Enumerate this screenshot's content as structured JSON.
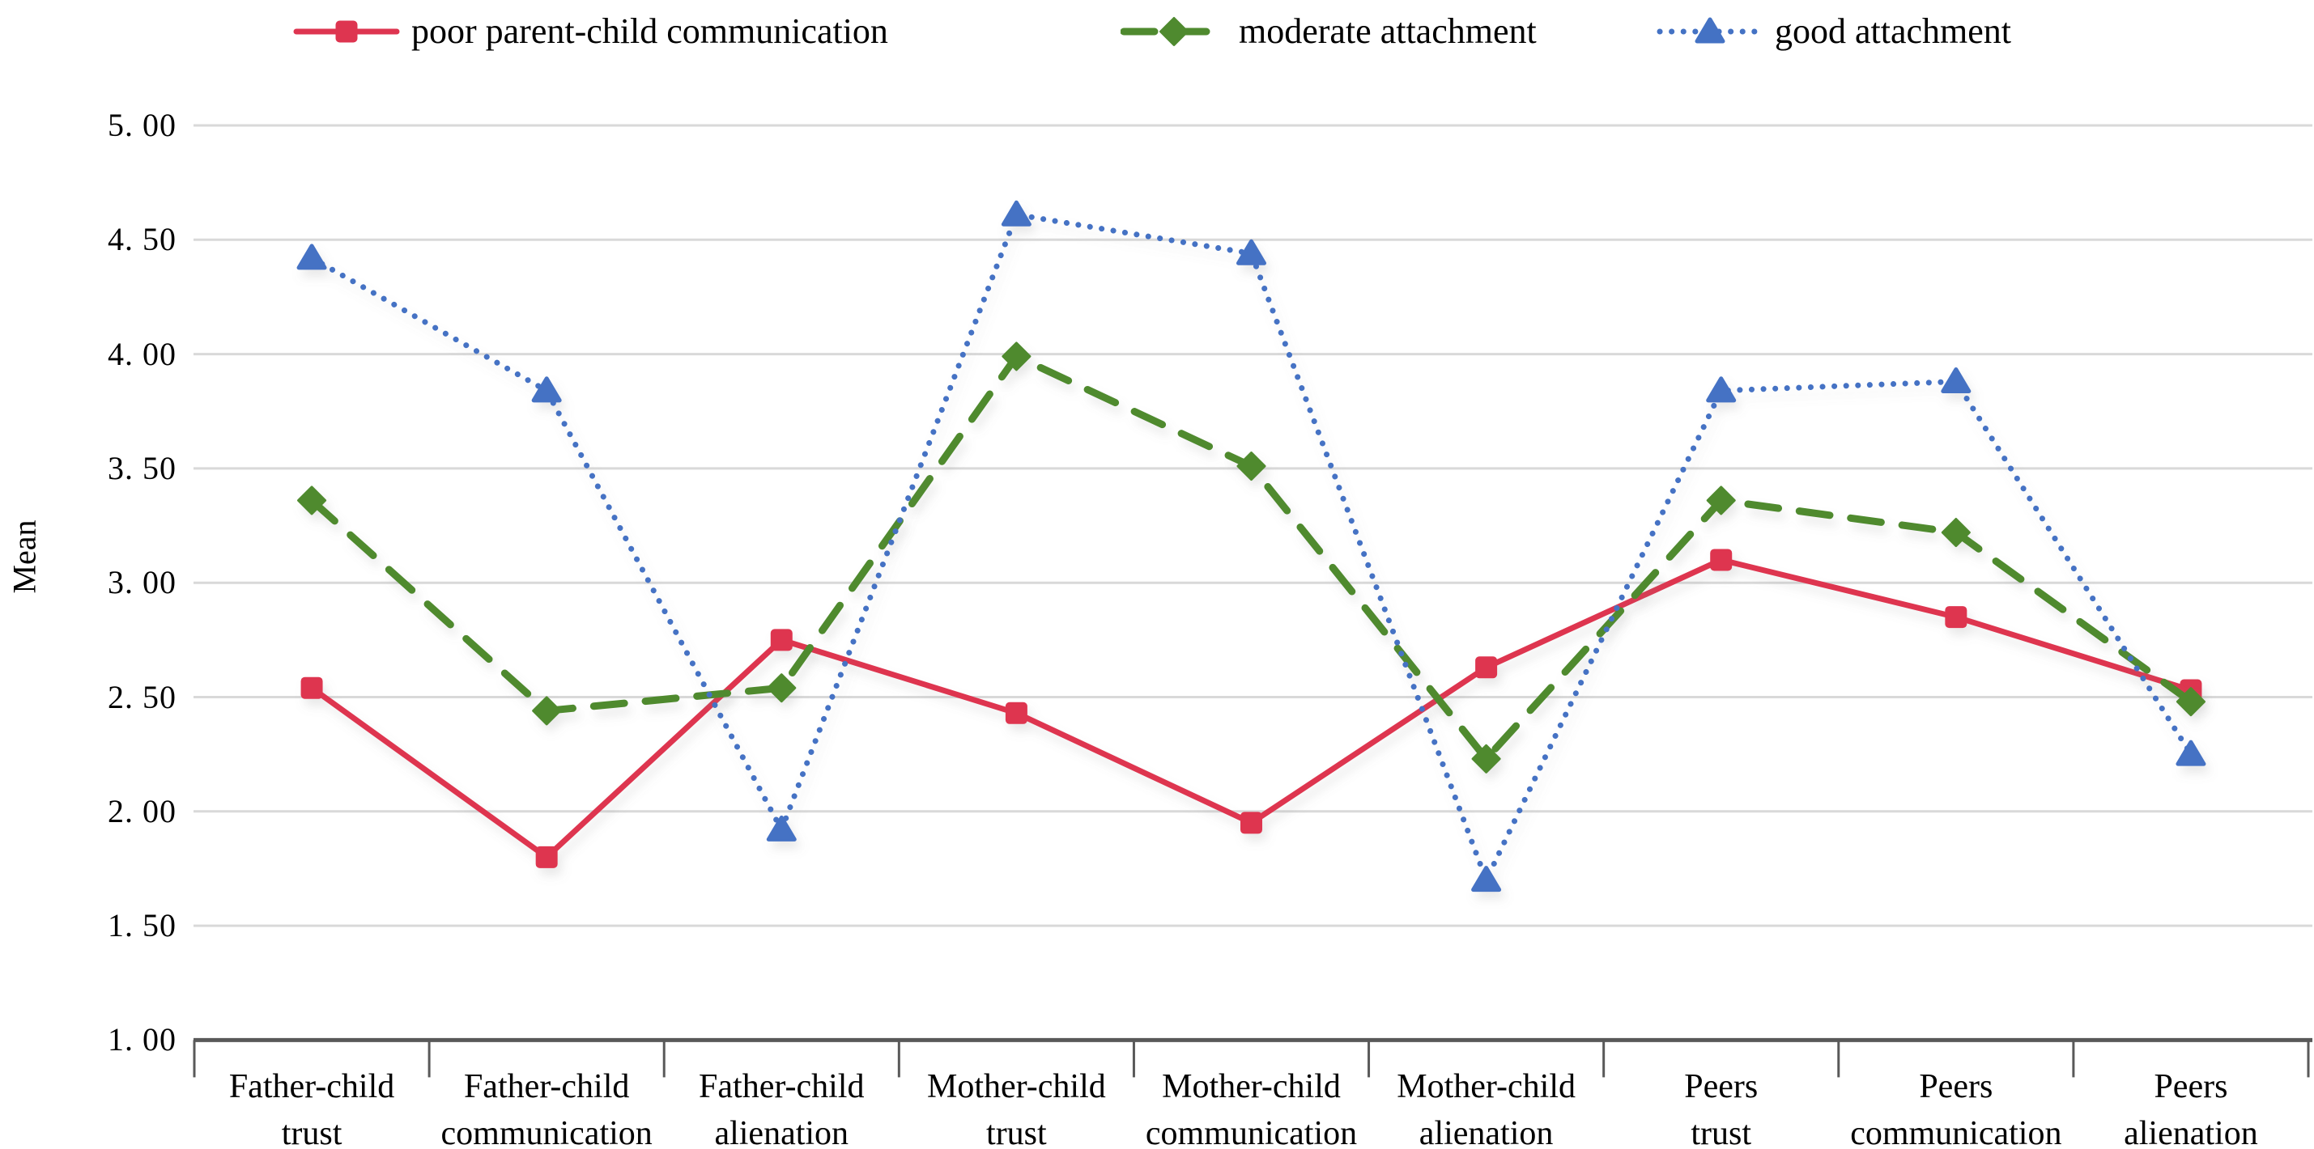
{
  "chart_data": {
    "type": "line",
    "title": "",
    "xlabel": "",
    "ylabel": "Mean",
    "ylim": [
      1.0,
      5.0
    ],
    "ytick_step": 0.5,
    "grid": true,
    "legend_position": "top",
    "y_ticks": [
      {
        "label": "5. 00",
        "value": 5.0
      },
      {
        "label": "4. 50",
        "value": 4.5
      },
      {
        "label": "4. 00",
        "value": 4.0
      },
      {
        "label": "3. 50",
        "value": 3.5
      },
      {
        "label": "3. 00",
        "value": 3.0
      },
      {
        "label": "2. 50",
        "value": 2.5
      },
      {
        "label": "2. 00",
        "value": 2.0
      },
      {
        "label": "1. 50",
        "value": 1.5
      },
      {
        "label": "1. 00",
        "value": 1.0
      }
    ],
    "categories": [
      "Father-child trust",
      "Father-child communication",
      "Father-child alienation",
      "Mother-child trust",
      "Mother-child communication",
      "Mother-child alienation",
      "Peers trust",
      "Peers communication",
      "Peers alienation"
    ],
    "series": [
      {
        "name": "poor parent-child communication",
        "color": "#DE3550",
        "line_style": "solid",
        "marker": "square",
        "values": [
          2.54,
          1.8,
          2.75,
          2.43,
          1.95,
          2.63,
          3.1,
          2.85,
          2.53
        ]
      },
      {
        "name": "moderate attachment",
        "color": "#4F8A2F",
        "line_style": "dashed",
        "marker": "diamond",
        "values": [
          3.36,
          2.44,
          2.54,
          3.99,
          3.51,
          2.23,
          3.36,
          3.22,
          2.48
        ]
      },
      {
        "name": "good attachment",
        "color": "#4472C4",
        "line_style": "dotted",
        "marker": "triangle",
        "values": [
          4.42,
          3.84,
          1.92,
          4.61,
          4.44,
          1.7,
          3.84,
          3.88,
          2.25
        ]
      }
    ]
  },
  "colors": {
    "background": "#FFFFFF",
    "gridline": "#D9D9D9",
    "axis": "#595959",
    "text": "#000000"
  }
}
